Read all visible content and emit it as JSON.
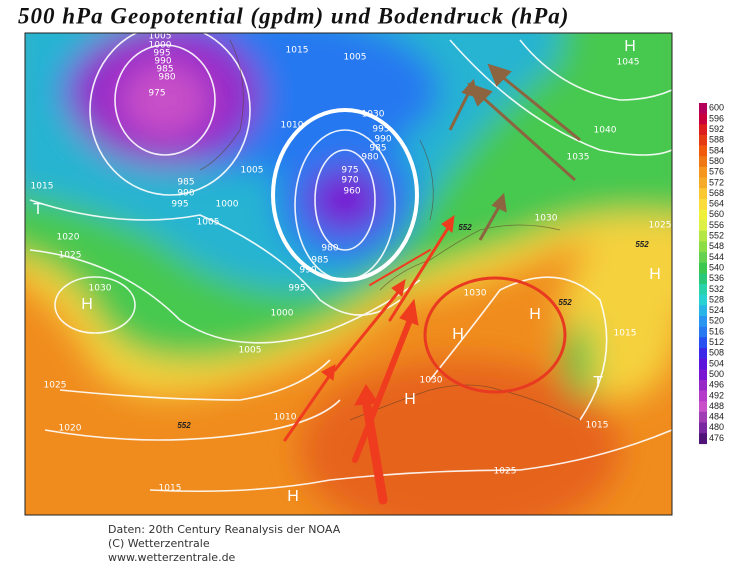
{
  "title": "500 hPa Geopotential (gpdm) und Bodendruck (hPa)",
  "colorbar": {
    "labels": [
      600,
      596,
      592,
      588,
      584,
      580,
      576,
      572,
      568,
      564,
      560,
      556,
      552,
      548,
      544,
      540,
      536,
      532,
      528,
      524,
      520,
      516,
      512,
      508,
      504,
      500,
      496,
      492,
      488,
      484,
      480,
      476
    ],
    "colors": [
      "#b4005a",
      "#c8003c",
      "#dc1e1e",
      "#e63c14",
      "#f05a0a",
      "#f07814",
      "#f5961e",
      "#f5aa28",
      "#fac832",
      "#fadc3c",
      "#f0f03c",
      "#dcf046",
      "#b4e646",
      "#8cdc46",
      "#64d250",
      "#3cc850",
      "#28c878",
      "#28d2aa",
      "#28d2d2",
      "#28b4e6",
      "#2896f0",
      "#2878f0",
      "#2850f0",
      "#3c28e6",
      "#5a14dc",
      "#7814d2",
      "#9628c8",
      "#b43cc8",
      "#c850c8",
      "#a03cb4",
      "#7828a0",
      "#501478"
    ]
  },
  "map": {
    "isobar_labels": [
      "1005",
      "1000",
      "995",
      "990",
      "985",
      "980",
      "975",
      "1015",
      "1005",
      "1010",
      "1005",
      "985",
      "990",
      "995",
      "1000",
      "1005",
      "1015",
      "1020",
      "1025",
      "1030",
      "1025",
      "1020",
      "1015",
      "1010",
      "1005",
      "1000",
      "995",
      "990",
      "985",
      "980",
      "975",
      "970",
      "960",
      "980",
      "985",
      "990",
      "995",
      "1030",
      "1030",
      "1030",
      "1025",
      "1015",
      "1015",
      "1025",
      "1030",
      "1035",
      "1040",
      "1045"
    ],
    "pressure_centers": [
      "H",
      "H",
      "H",
      "H",
      "H",
      "H",
      "H",
      "T",
      "T"
    ],
    "contour_labels": [
      "552",
      "552",
      "552",
      "552"
    ]
  },
  "footer": [
    "Daten: 20th Century Reanalysis der NOAA",
    "(C) Wetterzentrale",
    "www.wetterzentrale.de"
  ]
}
